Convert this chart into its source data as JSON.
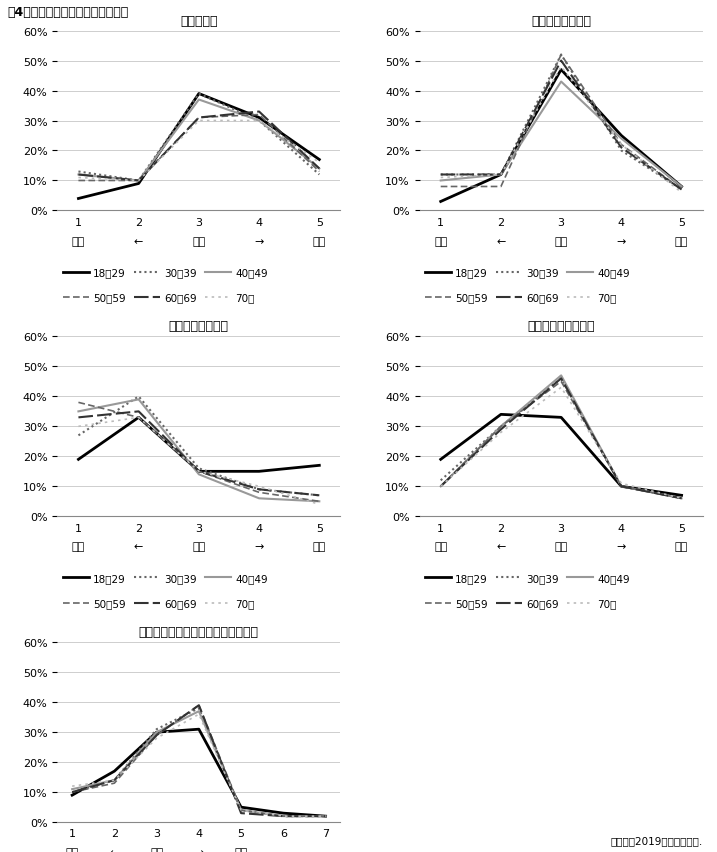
{
  "main_title": "図4　年齢層別に見た政策争点態度",
  "source_note": "データ：2019年有権者調査.",
  "age_groups": [
    "18～29",
    "30～39",
    "40～49",
    "50～59",
    "60～69",
    "70～"
  ],
  "plots": [
    {
      "title": "防衛力強化",
      "xlabel_labels": [
        "反対",
        "←",
        "中間",
        "→",
        "賛成"
      ],
      "xticks": [
        1,
        2,
        3,
        4,
        5
      ],
      "ylim": [
        0,
        0.6
      ],
      "yticks": [
        0,
        0.1,
        0.2,
        0.3,
        0.4,
        0.5,
        0.6
      ],
      "series": {
        "18～29": [
          0.04,
          0.09,
          0.39,
          0.31,
          0.17
        ],
        "30～39": [
          0.13,
          0.1,
          0.39,
          0.3,
          0.12
        ],
        "40～49": [
          0.12,
          0.1,
          0.37,
          0.3,
          0.14
        ],
        "50～59": [
          0.1,
          0.1,
          0.31,
          0.32,
          0.13
        ],
        "60～69": [
          0.12,
          0.1,
          0.31,
          0.33,
          0.14
        ],
        "70～": [
          0.11,
          0.1,
          0.3,
          0.3,
          0.16
        ]
      }
    },
    {
      "title": "日米安保体制強化",
      "xlabel_labels": [
        "反対",
        "←",
        "中間",
        "→",
        "賛成"
      ],
      "xticks": [
        1,
        2,
        3,
        4,
        5
      ],
      "ylim": [
        0,
        0.6
      ],
      "yticks": [
        0,
        0.1,
        0.2,
        0.3,
        0.4,
        0.5,
        0.6
      ],
      "series": {
        "18～29": [
          0.03,
          0.12,
          0.47,
          0.25,
          0.08
        ],
        "30～39": [
          0.12,
          0.12,
          0.52,
          0.2,
          0.07
        ],
        "40～49": [
          0.1,
          0.12,
          0.43,
          0.24,
          0.08
        ],
        "50～59": [
          0.08,
          0.08,
          0.52,
          0.22,
          0.07
        ],
        "60～69": [
          0.12,
          0.12,
          0.5,
          0.21,
          0.07
        ],
        "70～": [
          0.11,
          0.12,
          0.48,
          0.22,
          0.06
        ]
      }
    },
    {
      "title": "同一労働同一賃金",
      "xlabel_labels": [
        "賛成",
        "←",
        "中間",
        "→",
        "反対"
      ],
      "xticks": [
        1,
        2,
        3,
        4,
        5
      ],
      "ylim": [
        0,
        0.6
      ],
      "yticks": [
        0,
        0.1,
        0.2,
        0.3,
        0.4,
        0.5,
        0.6
      ],
      "series": {
        "18～29": [
          0.19,
          0.33,
          0.15,
          0.15,
          0.17
        ],
        "30～39": [
          0.27,
          0.4,
          0.16,
          0.09,
          0.07
        ],
        "40～49": [
          0.35,
          0.39,
          0.14,
          0.06,
          0.05
        ],
        "50～59": [
          0.38,
          0.33,
          0.15,
          0.08,
          0.05
        ],
        "60～69": [
          0.33,
          0.35,
          0.15,
          0.09,
          0.07
        ],
        "70～": [
          0.3,
          0.33,
          0.15,
          0.1,
          0.04
        ]
      }
    },
    {
      "title": "外国人労働者受入れ",
      "xlabel_labels": [
        "賛成",
        "←",
        "中間",
        "→",
        "反対"
      ],
      "xticks": [
        1,
        2,
        3,
        4,
        5
      ],
      "ylim": [
        0,
        0.6
      ],
      "yticks": [
        0,
        0.1,
        0.2,
        0.3,
        0.4,
        0.5,
        0.6
      ],
      "series": {
        "18～29": [
          0.19,
          0.34,
          0.33,
          0.1,
          0.07
        ],
        "30～39": [
          0.12,
          0.3,
          0.46,
          0.1,
          0.06
        ],
        "40～49": [
          0.1,
          0.3,
          0.47,
          0.1,
          0.06
        ],
        "50～59": [
          0.1,
          0.3,
          0.45,
          0.1,
          0.06
        ],
        "60～69": [
          0.1,
          0.29,
          0.46,
          0.1,
          0.06
        ],
        "70～": [
          0.1,
          0.28,
          0.43,
          0.11,
          0.06
        ]
      }
    },
    {
      "title": "政府は立案された政策を貫くべきだ",
      "xlabel_labels": [
        "反対",
        "←",
        "中間",
        "→",
        "賛成",
        "",
        ""
      ],
      "xticks": [
        1,
        2,
        3,
        4,
        5,
        6,
        7
      ],
      "ylim": [
        0,
        0.6
      ],
      "yticks": [
        0,
        0.1,
        0.2,
        0.3,
        0.4,
        0.5,
        0.6
      ],
      "series": {
        "18～29": [
          0.09,
          0.17,
          0.3,
          0.31,
          0.05,
          0.03,
          0.02
        ],
        "30～39": [
          0.1,
          0.14,
          0.31,
          0.38,
          0.04,
          0.02,
          0.02
        ],
        "40～49": [
          0.11,
          0.14,
          0.3,
          0.37,
          0.04,
          0.02,
          0.02
        ],
        "50～59": [
          0.1,
          0.13,
          0.29,
          0.39,
          0.04,
          0.02,
          0.02
        ],
        "60～69": [
          0.1,
          0.14,
          0.29,
          0.39,
          0.03,
          0.02,
          0.02
        ],
        "70～": [
          0.12,
          0.14,
          0.28,
          0.36,
          0.04,
          0.02,
          0.02
        ]
      }
    }
  ],
  "line_styles": {
    "18～29": {
      "color": "#000000",
      "linestyle": "-",
      "linewidth": 2.0
    },
    "30～39": {
      "color": "#666666",
      "linestyle": "dd",
      "linewidth": 1.5
    },
    "40～49": {
      "color": "#999999",
      "linestyle": "-",
      "linewidth": 1.5
    },
    "50～59": {
      "color": "#666666",
      "linestyle": "sd",
      "linewidth": 1.2
    },
    "60～69": {
      "color": "#333333",
      "linestyle": "ld",
      "linewidth": 1.5
    },
    "70～": {
      "color": "#bbbbbb",
      "linestyle": "sp",
      "linewidth": 1.2
    }
  }
}
